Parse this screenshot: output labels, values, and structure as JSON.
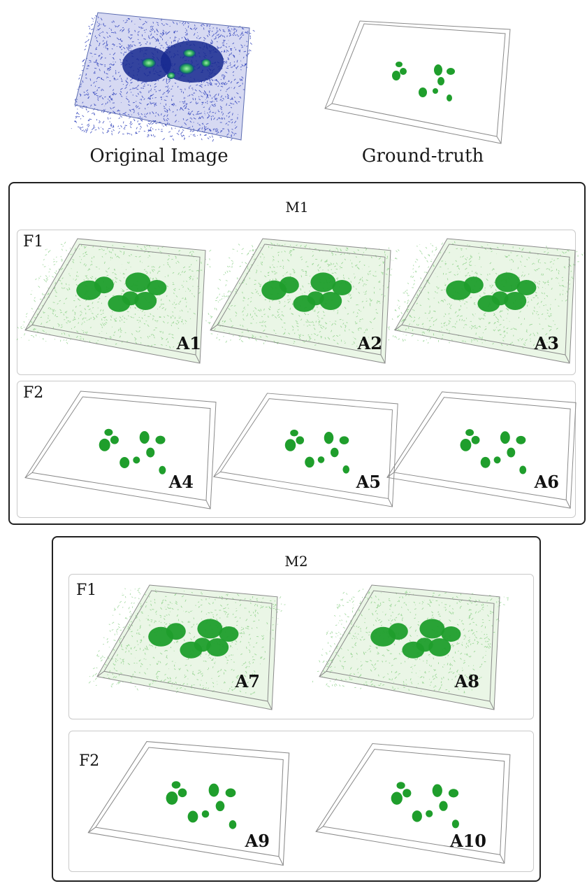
{
  "top": {
    "original": {
      "caption": "Original Image"
    },
    "ground_truth": {
      "caption": "Ground-truth"
    }
  },
  "colors": {
    "original_noise": "#1b2fb5",
    "original_blob": "#2aa55a",
    "green_noise": "#4fb84a",
    "green_blob": "#1f9e2c",
    "box_stroke": "#8a8a8a",
    "group_border": "#222222",
    "row_border": "#c9c9c9"
  },
  "groups": [
    {
      "title": "M1",
      "rows": [
        {
          "title": "F1",
          "style": "noisy",
          "tiles": [
            {
              "label": "A1"
            },
            {
              "label": "A2"
            },
            {
              "label": "A3"
            }
          ]
        },
        {
          "title": "F2",
          "style": "clean",
          "tiles": [
            {
              "label": "A4"
            },
            {
              "label": "A5"
            },
            {
              "label": "A6"
            }
          ]
        }
      ]
    },
    {
      "title": "M2",
      "rows": [
        {
          "title": "F1",
          "style": "noisy",
          "tiles": [
            {
              "label": "A7"
            },
            {
              "label": "A8"
            }
          ]
        },
        {
          "title": "F2",
          "style": "clean",
          "tiles": [
            {
              "label": "A9"
            },
            {
              "label": "A10"
            }
          ]
        }
      ]
    }
  ]
}
